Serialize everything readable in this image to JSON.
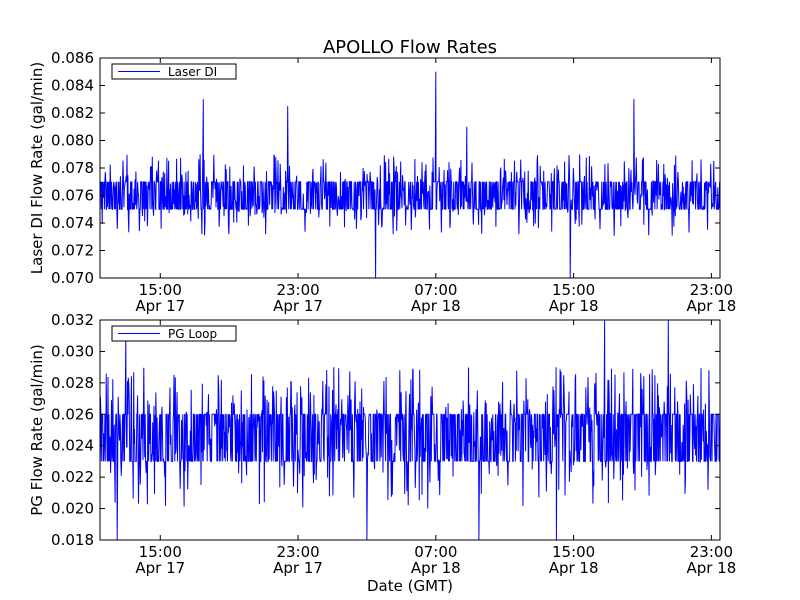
{
  "chart_data": [
    {
      "type": "line",
      "title": "APOLLO Flow Rates",
      "ylabel": "Laser DI Flow Rate (gal/min)",
      "xlabel": "",
      "xlim_hours": [
        11.5,
        47.5
      ],
      "x_ticks": [
        {
          "hour": 15,
          "time": "15:00",
          "date": "Apr 17"
        },
        {
          "hour": 23,
          "time": "23:00",
          "date": "Apr 17"
        },
        {
          "hour": 31,
          "time": "07:00",
          "date": "Apr 18"
        },
        {
          "hour": 39,
          "time": "15:00",
          "date": "Apr 18"
        },
        {
          "hour": 47,
          "time": "23:00",
          "date": "Apr 18"
        }
      ],
      "ylim": [
        0.07,
        0.086
      ],
      "y_ticks": [
        "0.070",
        "0.072",
        "0.074",
        "0.076",
        "0.078",
        "0.080",
        "0.082",
        "0.084",
        "0.086"
      ],
      "legend": "upper-left",
      "series": [
        {
          "name": "Laser DI",
          "color": "#0000ff",
          "baseline_low": 0.075,
          "baseline_high": 0.077,
          "range_min": 0.07,
          "range_max": 0.085,
          "spikes": [
            {
              "x": 17.5,
              "y": 0.083
            },
            {
              "x": 22.4,
              "y": 0.0825
            },
            {
              "x": 31.0,
              "y": 0.085
            },
            {
              "x": 32.8,
              "y": 0.081
            },
            {
              "x": 42.5,
              "y": 0.083
            },
            {
              "x": 27.5,
              "y": 0.07
            },
            {
              "x": 38.8,
              "y": 0.07
            }
          ]
        }
      ]
    },
    {
      "type": "line",
      "title": "",
      "ylabel": "PG Flow Rate (gal/min)",
      "xlabel": "Date (GMT)",
      "xlim_hours": [
        11.5,
        47.5
      ],
      "x_ticks": [
        {
          "hour": 15,
          "time": "15:00",
          "date": "Apr 17"
        },
        {
          "hour": 23,
          "time": "23:00",
          "date": "Apr 17"
        },
        {
          "hour": 31,
          "time": "07:00",
          "date": "Apr 18"
        },
        {
          "hour": 39,
          "time": "15:00",
          "date": "Apr 18"
        },
        {
          "hour": 47,
          "time": "23:00",
          "date": "Apr 18"
        }
      ],
      "ylim": [
        0.018,
        0.032
      ],
      "y_ticks": [
        "0.018",
        "0.020",
        "0.022",
        "0.024",
        "0.026",
        "0.028",
        "0.030",
        "0.032"
      ],
      "legend": "upper-left",
      "series": [
        {
          "name": "PG Loop",
          "color": "#0000ff",
          "baseline_low": 0.023,
          "baseline_high": 0.026,
          "range_min": 0.018,
          "range_max": 0.032,
          "spikes": [
            {
              "x": 13.0,
              "y": 0.031
            },
            {
              "x": 40.8,
              "y": 0.032
            },
            {
              "x": 44.5,
              "y": 0.032
            },
            {
              "x": 12.5,
              "y": 0.018
            },
            {
              "x": 27.0,
              "y": 0.018
            },
            {
              "x": 33.5,
              "y": 0.018
            },
            {
              "x": 38.0,
              "y": 0.018
            }
          ]
        }
      ]
    }
  ]
}
